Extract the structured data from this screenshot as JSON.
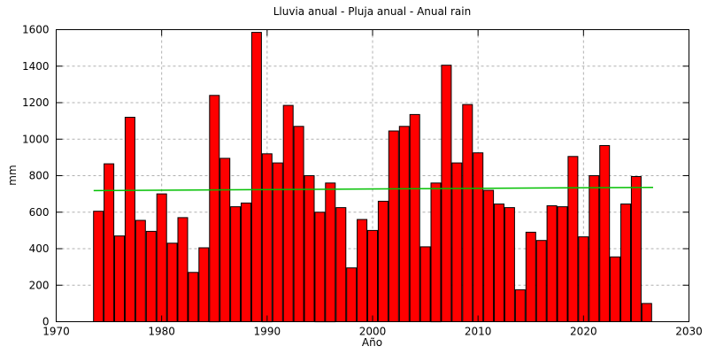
{
  "chart": {
    "title": "Lluvia anual - Pluja anual - Anual rain",
    "xlabel": "Año",
    "ylabel": "mm"
  },
  "chart_data": {
    "type": "bar",
    "title": "Lluvia anual - Pluja anual - Anual rain",
    "xlabel": "Año",
    "ylabel": "mm",
    "xlim": [
      1970,
      2030
    ],
    "ylim": [
      0,
      1600
    ],
    "xticks": [
      1970,
      1980,
      1990,
      2000,
      2010,
      2020,
      2030
    ],
    "yticks": [
      0,
      200,
      400,
      600,
      800,
      1000,
      1200,
      1400,
      1600
    ],
    "grid": true,
    "legend": "none",
    "bar_color": "#ff0000",
    "bar_border_color": "#000000",
    "grid_color": "#b0b0b0",
    "axis_color": "#000000",
    "years": [
      1974,
      1975,
      1976,
      1977,
      1978,
      1979,
      1980,
      1981,
      1982,
      1983,
      1984,
      1985,
      1986,
      1987,
      1988,
      1989,
      1990,
      1991,
      1992,
      1993,
      1994,
      1995,
      1996,
      1997,
      1998,
      1999,
      2000,
      2001,
      2002,
      2003,
      2004,
      2005,
      2006,
      2007,
      2008,
      2009,
      2010,
      2011,
      2012,
      2013,
      2014,
      2015,
      2016,
      2017,
      2018,
      2019,
      2020,
      2021,
      2022,
      2023,
      2024,
      2025,
      2026
    ],
    "values": [
      605,
      865,
      470,
      1120,
      555,
      495,
      700,
      430,
      570,
      270,
      405,
      1240,
      895,
      630,
      650,
      1585,
      920,
      870,
      1185,
      1070,
      800,
      600,
      760,
      625,
      295,
      560,
      500,
      660,
      1045,
      1070,
      1135,
      410,
      760,
      1405,
      870,
      1190,
      925,
      720,
      645,
      625,
      175,
      490,
      445,
      635,
      630,
      905,
      465,
      800,
      965,
      355,
      645,
      795,
      100
    ],
    "trend_line": {
      "color": "#00c000",
      "x": [
        1973.55,
        2026.6
      ],
      "y": [
        718,
        736
      ]
    }
  }
}
